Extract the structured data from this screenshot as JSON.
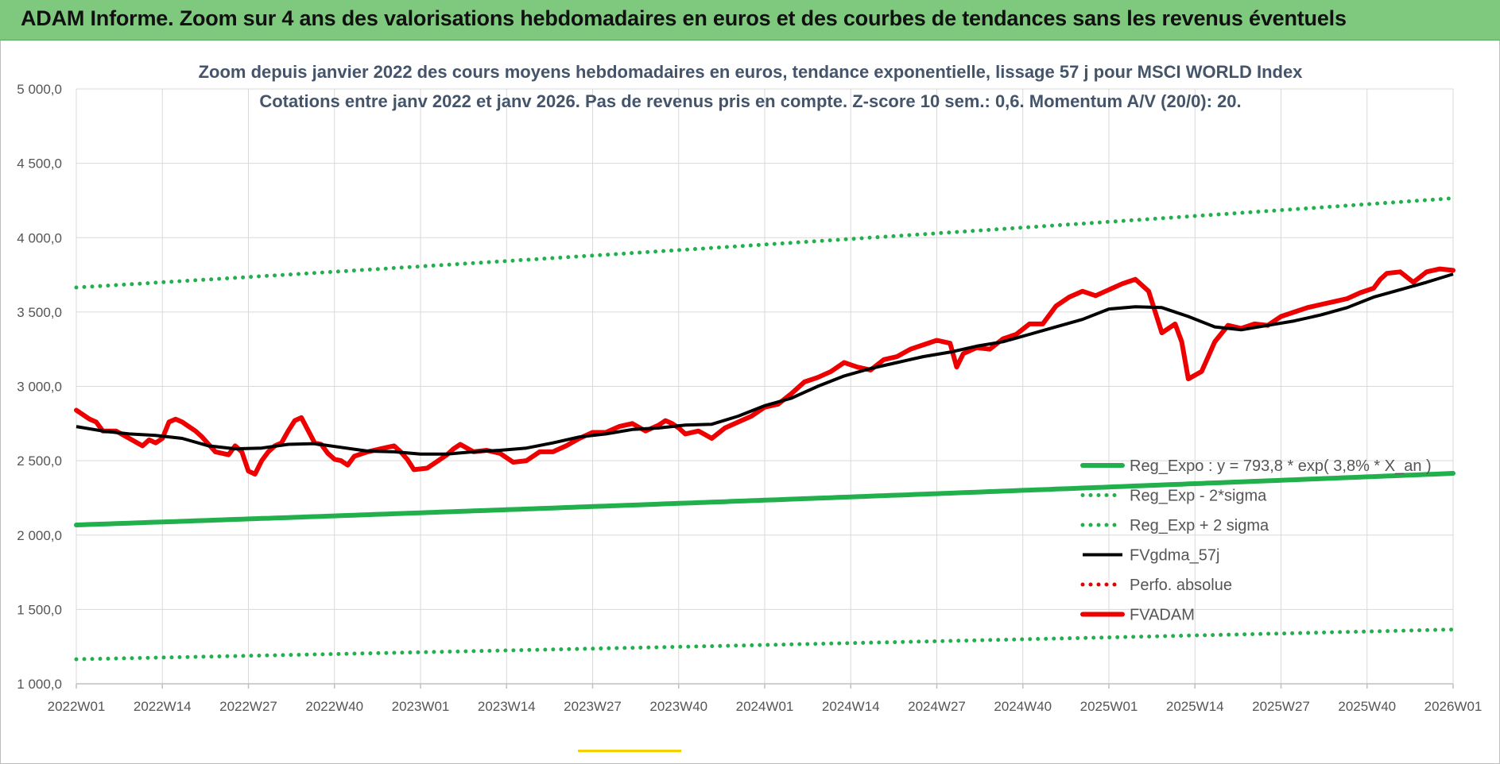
{
  "banner": {
    "title": "ADAM Informe. Zoom sur 4 ans des valorisations hebdomadaires en euros et des courbes de tendances sans les revenus éventuels"
  },
  "colors": {
    "banner_bg": "#7fc97f",
    "reg_expo": "#21b04b",
    "reg_sigma": "#21b04b",
    "fvgdma": "#000000",
    "perfo": "#e00000",
    "fvadam": "#ee0000",
    "grid": "#d9d9d9",
    "title": "#44546a"
  },
  "chart_data": {
    "type": "line",
    "title": "Zoom depuis janvier 2022 des cours moyens hebdomadaires en euros, tendance exponentielle, lissage 57 j pour MSCI WORLD Index",
    "subtitle": "Cotations entre janv 2022 et janv 2026. Pas de revenus pris en compte. Z-score 10 sem.: 0,6. Momentum A/V (20/0): 20.",
    "xlabel": "",
    "ylabel": "",
    "ylim": [
      1000,
      5000
    ],
    "yticks": [
      "1 000,0",
      "1 500,0",
      "2 000,0",
      "2 500,0",
      "3 000,0",
      "3 500,0",
      "4 000,0",
      "4 500,0",
      "5 000,0"
    ],
    "ytick_values": [
      1000,
      1500,
      2000,
      2500,
      3000,
      3500,
      4000,
      4500,
      5000
    ],
    "xlim": [
      0,
      208
    ],
    "xticks": [
      "2022W01",
      "2022W14",
      "2022W27",
      "2022W40",
      "2023W01",
      "2023W14",
      "2023W27",
      "2023W40",
      "2024W01",
      "2024W14",
      "2024W27",
      "2024W40",
      "2025W01",
      "2025W14",
      "2025W27",
      "2025W40",
      "2026W01"
    ],
    "xtick_positions": [
      0,
      13,
      26,
      39,
      52,
      65,
      78,
      91,
      104,
      117,
      130,
      143,
      156,
      169,
      182,
      195,
      208
    ],
    "grid": true,
    "legend_position": "bottom-right",
    "series": [
      {
        "name": "Reg_Expo : y = 793,8 * exp( 3,8% *  X_an )",
        "style": "solid-thick",
        "x": [
          0,
          208
        ],
        "values": [
          2068,
          2415
        ],
        "interp": "exp"
      },
      {
        "name": "Reg_Exp - 2*sigma",
        "style": "dotted",
        "x": [
          0,
          208
        ],
        "values": [
          1165,
          1365
        ],
        "interp": "exp"
      },
      {
        "name": "Reg_Exp + 2 sigma",
        "style": "dotted",
        "x": [
          0,
          208
        ],
        "values": [
          3665,
          4265
        ],
        "interp": "exp"
      },
      {
        "name": "FVgdma_57j",
        "style": "solid",
        "x": [
          0,
          4,
          8,
          12,
          16,
          20,
          24,
          28,
          32,
          36,
          40,
          44,
          48,
          52,
          56,
          60,
          64,
          68,
          72,
          76,
          80,
          84,
          88,
          92,
          96,
          100,
          104,
          108,
          112,
          116,
          120,
          124,
          128,
          132,
          136,
          140,
          144,
          148,
          152,
          156,
          160,
          164,
          168,
          172,
          176,
          180,
          184,
          188,
          192,
          196,
          200,
          204,
          208
        ],
        "values": [
          2730,
          2700,
          2680,
          2670,
          2650,
          2600,
          2580,
          2585,
          2610,
          2615,
          2590,
          2565,
          2560,
          2545,
          2545,
          2560,
          2570,
          2585,
          2620,
          2660,
          2680,
          2710,
          2720,
          2740,
          2745,
          2800,
          2870,
          2920,
          3000,
          3070,
          3120,
          3160,
          3200,
          3230,
          3270,
          3300,
          3350,
          3400,
          3450,
          3520,
          3535,
          3530,
          3470,
          3400,
          3380,
          3410,
          3440,
          3480,
          3530,
          3600,
          3650,
          3700,
          3755
        ]
      },
      {
        "name": "Perfo. absolue",
        "style": "dotted",
        "x": [],
        "values": []
      },
      {
        "name": "FVADAM",
        "style": "solid-thick",
        "x": [
          0,
          2,
          3,
          4,
          6,
          8,
          10,
          11,
          12,
          13,
          14,
          15,
          16,
          17,
          18,
          19,
          21,
          23,
          24,
          25,
          26,
          27,
          28,
          29,
          30,
          31,
          32,
          33,
          34,
          36,
          37,
          38,
          39,
          40,
          41,
          42,
          44,
          46,
          48,
          49,
          50,
          51,
          53,
          54,
          56,
          57,
          58,
          60,
          62,
          64,
          65,
          66,
          68,
          70,
          72,
          74,
          76,
          78,
          80,
          82,
          84,
          86,
          88,
          89,
          90,
          91,
          92,
          94,
          96,
          98,
          100,
          102,
          104,
          106,
          108,
          110,
          112,
          114,
          116,
          118,
          120,
          122,
          124,
          126,
          128,
          130,
          132,
          133,
          134,
          136,
          138,
          140,
          142,
          144,
          146,
          148,
          150,
          152,
          154,
          156,
          158,
          160,
          162,
          164,
          166,
          167,
          168,
          170,
          172,
          174,
          176,
          178,
          180,
          182,
          184,
          186,
          188,
          190,
          192,
          194,
          196,
          197,
          198,
          200,
          202,
          204,
          206,
          208
        ],
        "values": [
          2840,
          2780,
          2760,
          2700,
          2700,
          2650,
          2600,
          2640,
          2620,
          2650,
          2760,
          2780,
          2760,
          2730,
          2700,
          2660,
          2560,
          2540,
          2600,
          2560,
          2430,
          2410,
          2500,
          2560,
          2600,
          2620,
          2700,
          2770,
          2790,
          2620,
          2610,
          2550,
          2510,
          2500,
          2470,
          2530,
          2560,
          2580,
          2600,
          2560,
          2510,
          2440,
          2450,
          2480,
          2540,
          2580,
          2610,
          2560,
          2570,
          2550,
          2520,
          2490,
          2500,
          2560,
          2560,
          2600,
          2650,
          2690,
          2690,
          2730,
          2750,
          2700,
          2740,
          2770,
          2750,
          2720,
          2680,
          2700,
          2650,
          2720,
          2760,
          2800,
          2860,
          2880,
          2950,
          3030,
          3060,
          3100,
          3160,
          3130,
          3110,
          3180,
          3200,
          3250,
          3280,
          3310,
          3290,
          3130,
          3220,
          3260,
          3250,
          3320,
          3350,
          3420,
          3420,
          3540,
          3600,
          3640,
          3610,
          3650,
          3690,
          3720,
          3640,
          3360,
          3420,
          3300,
          3050,
          3100,
          3300,
          3410,
          3390,
          3420,
          3410,
          3470,
          3500,
          3530,
          3550,
          3570,
          3590,
          3630,
          3660,
          3720,
          3760,
          3770,
          3700,
          3770,
          3790,
          3780
        ]
      }
    ]
  }
}
